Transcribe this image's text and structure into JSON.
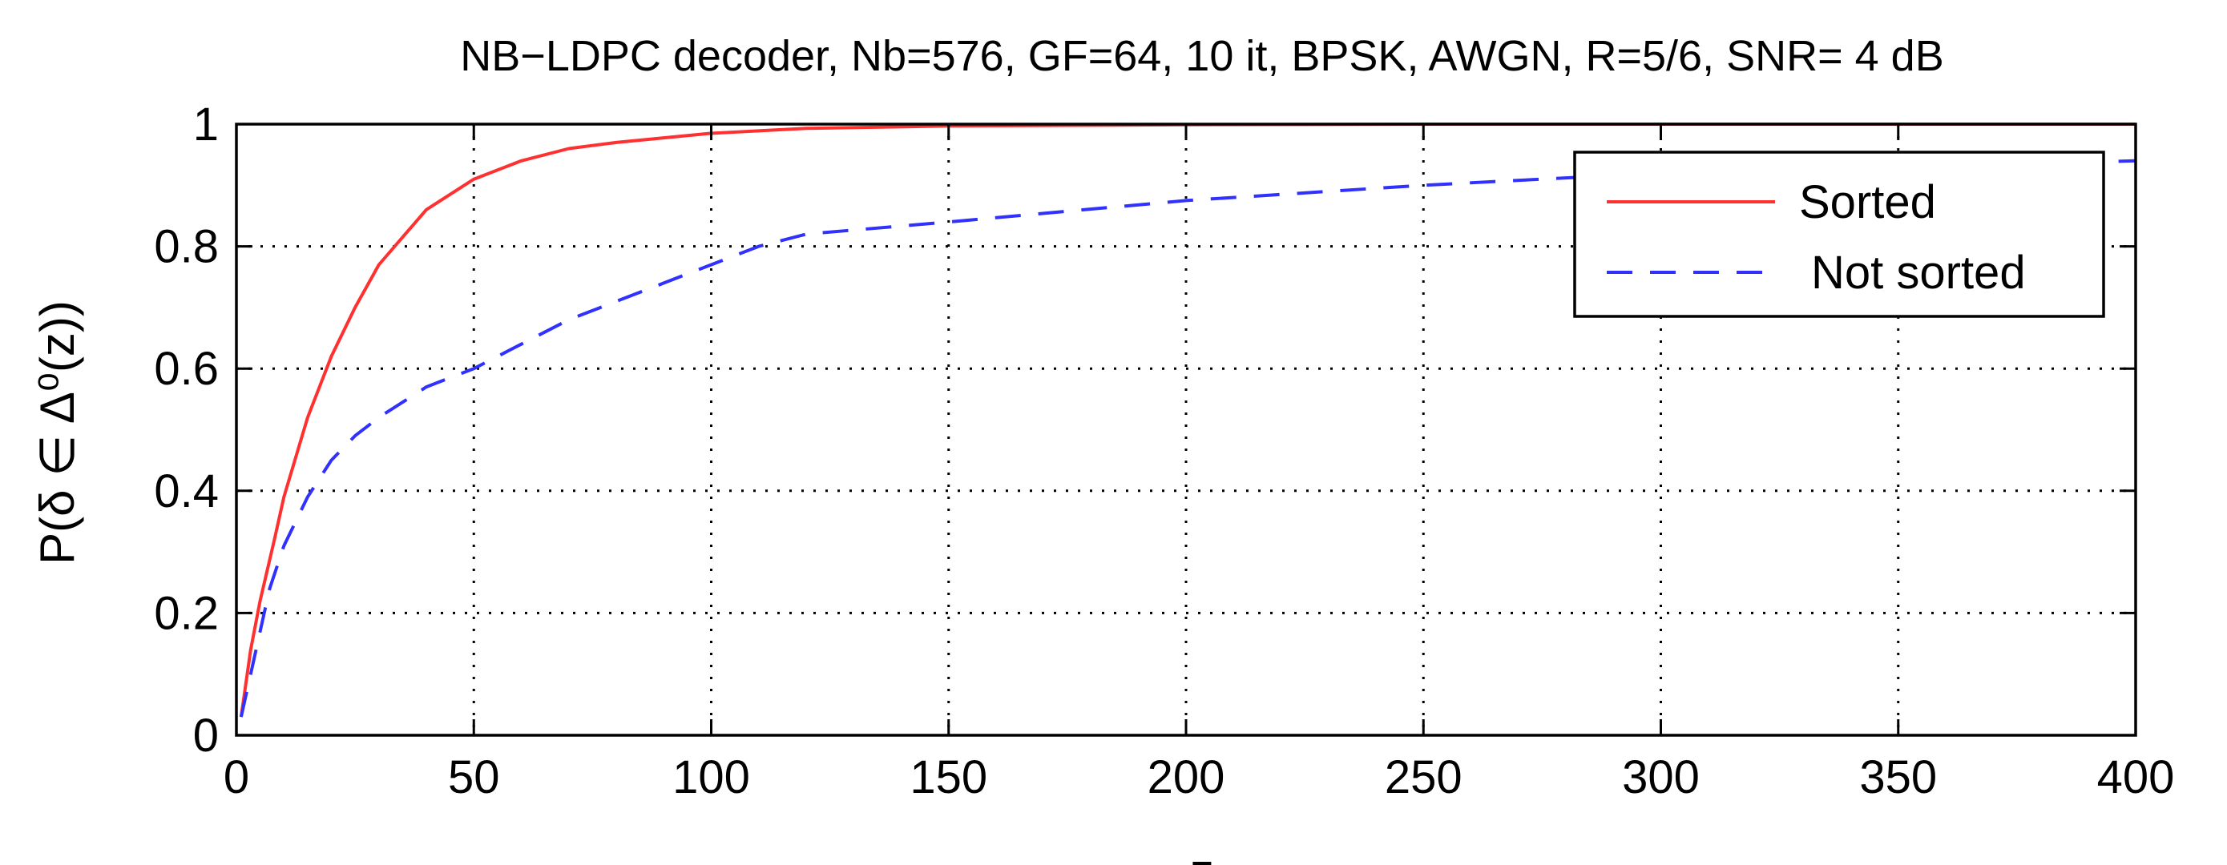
{
  "chart_data": {
    "type": "line",
    "title": "NB−LDPC decoder, Nb=576, GF=64, 10 it, BPSK, AWGN, R=5/6, SNR= 4 dB",
    "xlabel": "z",
    "ylabel": "P(δ ∈ Δ⁰(z))",
    "xlim": [
      0,
      400
    ],
    "ylim": [
      0,
      1
    ],
    "xticks": [
      0,
      50,
      100,
      150,
      200,
      250,
      300,
      350,
      400
    ],
    "yticks": [
      0,
      0.2,
      0.4,
      0.6,
      0.8,
      1
    ],
    "xtick_labels": [
      "0",
      "50",
      "100",
      "150",
      "200",
      "250",
      "300",
      "350",
      "400"
    ],
    "ytick_labels": [
      "0",
      "0.2",
      "0.4",
      "0.6",
      "0.8",
      "1"
    ],
    "grid": true,
    "legend_position": "top-right",
    "series": [
      {
        "name": "Sorted",
        "color": "#ff3030",
        "style": "solid",
        "x": [
          1,
          3,
          5,
          8,
          10,
          15,
          20,
          25,
          30,
          40,
          50,
          60,
          70,
          80,
          100,
          120,
          150,
          200,
          250,
          300,
          350,
          400
        ],
        "y": [
          0.03,
          0.14,
          0.22,
          0.32,
          0.39,
          0.52,
          0.62,
          0.7,
          0.77,
          0.86,
          0.91,
          0.94,
          0.96,
          0.97,
          0.985,
          0.993,
          0.997,
          0.999,
          1.0,
          1.0,
          1.0,
          1.0
        ]
      },
      {
        "name": "Not sorted",
        "color": "#3030ff",
        "style": "dashed",
        "x": [
          1,
          3,
          5,
          7,
          10,
          15,
          20,
          25,
          30,
          40,
          50,
          60,
          70,
          80,
          90,
          100,
          110,
          120,
          150,
          200,
          250,
          300,
          350,
          400
        ],
        "y": [
          0.03,
          0.1,
          0.17,
          0.24,
          0.31,
          0.39,
          0.45,
          0.49,
          0.52,
          0.57,
          0.6,
          0.64,
          0.68,
          0.71,
          0.74,
          0.77,
          0.8,
          0.82,
          0.84,
          0.875,
          0.9,
          0.92,
          0.93,
          0.94
        ]
      }
    ]
  }
}
